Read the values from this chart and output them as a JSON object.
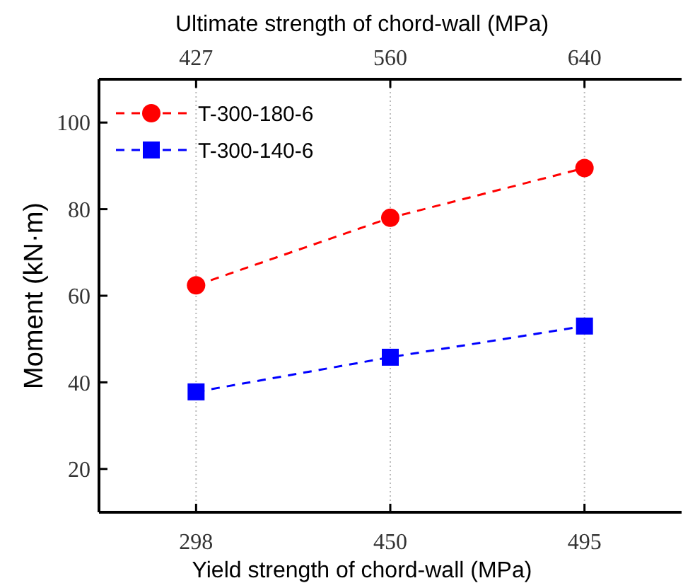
{
  "chart_data": {
    "type": "line",
    "xlabel": "Yield strength of chord-wall (MPa)",
    "x2label": "Ultimate strength of chord-wall (MPa)",
    "ylabel": "Moment (kN·m)",
    "categories": [
      "298",
      "450",
      "495"
    ],
    "annotations": [
      {
        "text": "427",
        "x": "298"
      },
      {
        "text": "560",
        "x": "450"
      },
      {
        "text": "640",
        "x": "495"
      }
    ],
    "ylim": [
      10,
      110
    ],
    "yticks": [
      20,
      40,
      60,
      80,
      100
    ],
    "grid": "x",
    "legend": "top left",
    "line_style": "dashed",
    "series": [
      {
        "name": "T-300-180-6",
        "color": "#ff0000",
        "marker": "circle",
        "values": [
          62.4,
          78,
          89.5
        ]
      },
      {
        "name": "T-300-140-6",
        "color": "#0000ff",
        "marker": "square",
        "values": [
          37.8,
          45.8,
          53
        ]
      }
    ]
  }
}
